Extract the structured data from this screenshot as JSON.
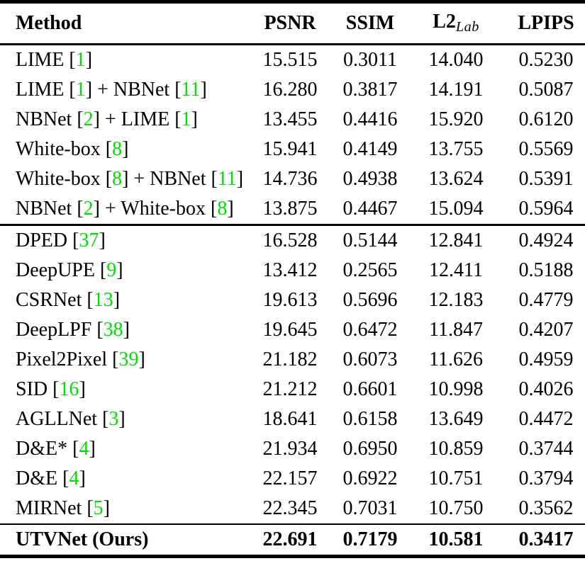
{
  "table": {
    "citation_color": "#00dd00",
    "header": {
      "method": "Method",
      "psnr": "PSNR",
      "ssim": "SSIM",
      "l2_main": "L2",
      "l2_sub": "Lab",
      "lpips": "LPIPS"
    },
    "rows": [
      {
        "method": [
          {
            "t": "LIME ["
          },
          {
            "t": "1",
            "cite": true
          },
          {
            "t": "]"
          }
        ],
        "psnr": "15.515",
        "ssim": "0.3011",
        "l2": "14.040",
        "lpips": "0.5230",
        "rule_after": null,
        "bold": false
      },
      {
        "method": [
          {
            "t": "LIME ["
          },
          {
            "t": "1",
            "cite": true
          },
          {
            "t": "] + NBNet ["
          },
          {
            "t": "11",
            "cite": true
          },
          {
            "t": "]"
          }
        ],
        "psnr": "16.280",
        "ssim": "0.3817",
        "l2": "14.191",
        "lpips": "0.5087",
        "rule_after": null,
        "bold": false
      },
      {
        "method": [
          {
            "t": "NBNet ["
          },
          {
            "t": "2",
            "cite": true
          },
          {
            "t": "] + LIME ["
          },
          {
            "t": "1",
            "cite": true
          },
          {
            "t": "]"
          }
        ],
        "psnr": "13.455",
        "ssim": "0.4416",
        "l2": "15.920",
        "lpips": "0.6120",
        "rule_after": null,
        "bold": false
      },
      {
        "method": [
          {
            "t": "White-box ["
          },
          {
            "t": "8",
            "cite": true
          },
          {
            "t": "]"
          }
        ],
        "psnr": "15.941",
        "ssim": "0.4149",
        "l2": "13.755",
        "lpips": "0.5569",
        "rule_after": null,
        "bold": false
      },
      {
        "method": [
          {
            "t": "White-box ["
          },
          {
            "t": "8",
            "cite": true
          },
          {
            "t": "] + NBNet ["
          },
          {
            "t": "11",
            "cite": true
          },
          {
            "t": "]"
          }
        ],
        "psnr": "14.736",
        "ssim": "0.4938",
        "l2": "13.624",
        "lpips": "0.5391",
        "rule_after": null,
        "bold": false
      },
      {
        "method": [
          {
            "t": "NBNet ["
          },
          {
            "t": "2",
            "cite": true
          },
          {
            "t": "] + White-box ["
          },
          {
            "t": "8",
            "cite": true
          },
          {
            "t": "]"
          }
        ],
        "psnr": "13.875",
        "ssim": "0.4467",
        "l2": "15.094",
        "lpips": "0.5964",
        "rule_after": "medium",
        "bold": false
      },
      {
        "method": [
          {
            "t": "DPED ["
          },
          {
            "t": "37",
            "cite": true
          },
          {
            "t": "]"
          }
        ],
        "psnr": "16.528",
        "ssim": "0.5144",
        "l2": "12.841",
        "lpips": "0.4924",
        "rule_after": null,
        "bold": false
      },
      {
        "method": [
          {
            "t": "DeepUPE ["
          },
          {
            "t": "9",
            "cite": true
          },
          {
            "t": "]"
          }
        ],
        "psnr": "13.412",
        "ssim": "0.2565",
        "l2": "12.411",
        "lpips": "0.5188",
        "rule_after": null,
        "bold": false
      },
      {
        "method": [
          {
            "t": "CSRNet ["
          },
          {
            "t": "13",
            "cite": true
          },
          {
            "t": "]"
          }
        ],
        "psnr": "19.613",
        "ssim": "0.5696",
        "l2": "12.183",
        "lpips": "0.4779",
        "rule_after": null,
        "bold": false
      },
      {
        "method": [
          {
            "t": "DeepLPF ["
          },
          {
            "t": "38",
            "cite": true
          },
          {
            "t": "]"
          }
        ],
        "psnr": "19.645",
        "ssim": "0.6472",
        "l2": "11.847",
        "lpips": "0.4207",
        "rule_after": null,
        "bold": false
      },
      {
        "method": [
          {
            "t": "Pixel2Pixel ["
          },
          {
            "t": "39",
            "cite": true
          },
          {
            "t": "]"
          }
        ],
        "psnr": "21.182",
        "ssim": "0.6073",
        "l2": "11.626",
        "lpips": "0.4959",
        "rule_after": null,
        "bold": false
      },
      {
        "method": [
          {
            "t": "SID ["
          },
          {
            "t": "16",
            "cite": true
          },
          {
            "t": "]"
          }
        ],
        "psnr": "21.212",
        "ssim": "0.6601",
        "l2": "10.998",
        "lpips": "0.4026",
        "rule_after": null,
        "bold": false
      },
      {
        "method": [
          {
            "t": "AGLLNet ["
          },
          {
            "t": "3",
            "cite": true
          },
          {
            "t": "]"
          }
        ],
        "psnr": "18.641",
        "ssim": "0.6158",
        "l2": "13.649",
        "lpips": "0.4472",
        "rule_after": null,
        "bold": false
      },
      {
        "method": [
          {
            "t": "D&E* ["
          },
          {
            "t": "4",
            "cite": true
          },
          {
            "t": "]"
          }
        ],
        "psnr": "21.934",
        "ssim": "0.6950",
        "l2": "10.859",
        "lpips": "0.3744",
        "rule_after": null,
        "bold": false
      },
      {
        "method": [
          {
            "t": "D&E ["
          },
          {
            "t": "4",
            "cite": true
          },
          {
            "t": "]"
          }
        ],
        "psnr": "22.157",
        "ssim": "0.6922",
        "l2": "10.751",
        "lpips": "0.3794",
        "rule_after": null,
        "bold": false
      },
      {
        "method": [
          {
            "t": "MIRNet ["
          },
          {
            "t": "5",
            "cite": true
          },
          {
            "t": "]"
          }
        ],
        "psnr": "22.345",
        "ssim": "0.7031",
        "l2": "10.750",
        "lpips": "0.3562",
        "rule_after": "thin",
        "bold": false
      },
      {
        "method": [
          {
            "t": "UTVNet (Ours)"
          }
        ],
        "psnr": "22.691",
        "ssim": "0.7179",
        "l2": "10.581",
        "lpips": "0.3417",
        "rule_after": null,
        "bold": true
      }
    ]
  }
}
